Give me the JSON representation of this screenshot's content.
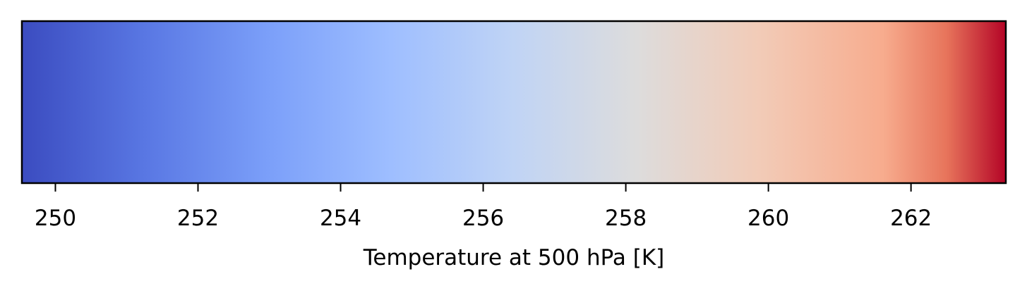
{
  "chart_data": {
    "type": "colorbar",
    "colormap": "coolwarm",
    "orientation": "horizontal",
    "xlabel": "Temperature at 500 hPa [K]",
    "xlim": [
      249.53,
      263.33
    ],
    "ticks": [
      250,
      252,
      254,
      256,
      258,
      260,
      262
    ],
    "tick_labels": [
      "250",
      "252",
      "254",
      "256",
      "258",
      "260",
      "262"
    ],
    "color_stops": [
      {
        "offset": 0.0,
        "color": "#3b4cc0"
      },
      {
        "offset": 0.125,
        "color": "#5977e3"
      },
      {
        "offset": 0.25,
        "color": "#7b9ff9"
      },
      {
        "offset": 0.375,
        "color": "#9ebeff"
      },
      {
        "offset": 0.5,
        "color": "#c0d4f5"
      },
      {
        "offset": 0.625,
        "color": "#dddcdc"
      },
      {
        "offset": 0.75,
        "color": "#f2cbb7"
      },
      {
        "offset": 0.875,
        "color": "#f7ac8e"
      },
      {
        "offset": 0.94,
        "color": "#e7745b"
      },
      {
        "offset": 1.0,
        "color": "#b40426"
      }
    ]
  }
}
